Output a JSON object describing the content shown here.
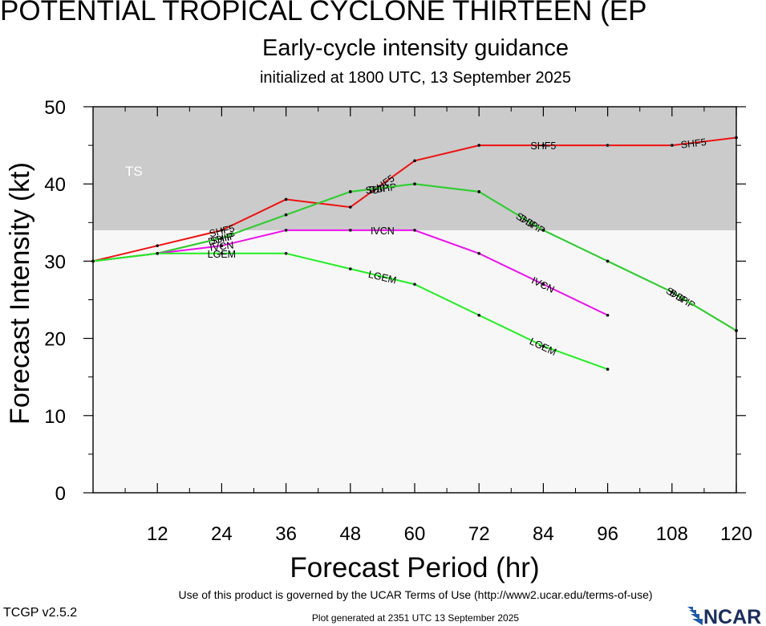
{
  "header": {
    "title": "POTENTIAL TROPICAL CYCLONE THIRTEEN (EP",
    "subtitle": "Early-cycle intensity guidance",
    "initialized": "initialized at 1800 UTC, 13 September 2025"
  },
  "footer": {
    "terms": "Use of this product is governed by the UCAR Terms of Use (http://www2.ucar.edu/terms-of-use)",
    "version": "TCGP v2.5.2",
    "generated": "Plot generated at 2351 UTC   13 September 2025",
    "logo_text": "NCAR"
  },
  "chart_data": {
    "type": "line",
    "title": "POTENTIAL TROPICAL CYCLONE THIRTEEN (EP",
    "xlabel": "Forecast Period (hr)",
    "ylabel": "Forecast Intensity (kt)",
    "xlim": [
      0,
      120
    ],
    "ylim": [
      0,
      50
    ],
    "xticks": [
      12,
      24,
      36,
      48,
      60,
      72,
      84,
      96,
      108,
      120
    ],
    "yticks": [
      0,
      10,
      20,
      30,
      40,
      50
    ],
    "grid": false,
    "bands": [
      {
        "label": "TS",
        "from": 34,
        "to": 50,
        "color": "#cbcbcb"
      }
    ],
    "background_color": "#f7f7f7",
    "series": [
      {
        "name": "SHF5",
        "color": "#ee1111",
        "x": [
          0,
          12,
          24,
          36,
          48,
          60,
          72,
          84,
          96,
          108,
          120
        ],
        "y": [
          30,
          32,
          34,
          38,
          37,
          43,
          45,
          45,
          45,
          45,
          46
        ],
        "labels": [
          {
            "x": 24,
            "text": "SHF5"
          },
          {
            "x": 54,
            "text": "SHF5"
          },
          {
            "x": 84,
            "text": "SHF5"
          },
          {
            "x": 112,
            "text": "SHF5"
          }
        ]
      },
      {
        "name": "DSHP",
        "color": "#33cc33",
        "x": [
          0,
          12,
          24,
          36,
          48,
          60,
          72,
          84,
          96,
          108,
          120
        ],
        "y": [
          30,
          31,
          33,
          36,
          39,
          40,
          39,
          34,
          30,
          26,
          21
        ],
        "labels": [
          {
            "x": 24,
            "text": "DSHP"
          },
          {
            "x": 54,
            "text": "DSHP"
          },
          {
            "x": 82,
            "text": "DSHP"
          },
          {
            "x": 110,
            "text": "DSHP"
          }
        ]
      },
      {
        "name": "SHIP",
        "color": "#33cc33",
        "x": [
          0,
          12,
          24,
          36,
          48,
          60,
          72,
          84,
          96,
          108,
          120
        ],
        "y": [
          30,
          31,
          33,
          36,
          39,
          40,
          39,
          34,
          30,
          26,
          21
        ],
        "labels": [
          {
            "x": 24,
            "text": "SHIP"
          },
          {
            "x": 53,
            "text": "SHIP"
          },
          {
            "x": 81,
            "text": "SHIP"
          },
          {
            "x": 109,
            "text": "SHIP"
          }
        ]
      },
      {
        "name": "IVCN",
        "color": "#ee11ee",
        "x": [
          0,
          12,
          24,
          36,
          48,
          60,
          72,
          84,
          96
        ],
        "y": [
          30,
          31,
          32,
          34,
          34,
          34,
          31,
          27,
          23
        ],
        "labels": [
          {
            "x": 24,
            "text": "IVCN"
          },
          {
            "x": 54,
            "text": "IVCN"
          },
          {
            "x": 84,
            "text": "IVCN"
          }
        ]
      },
      {
        "name": "LGEM",
        "color": "#22ee22",
        "x": [
          0,
          12,
          24,
          36,
          48,
          60,
          72,
          84,
          96
        ],
        "y": [
          30,
          31,
          31,
          31,
          29,
          27,
          23,
          19,
          16
        ],
        "labels": [
          {
            "x": 24,
            "text": "LGEM"
          },
          {
            "x": 54,
            "text": "LGEM"
          },
          {
            "x": 84,
            "text": "LGEM"
          }
        ]
      }
    ]
  }
}
